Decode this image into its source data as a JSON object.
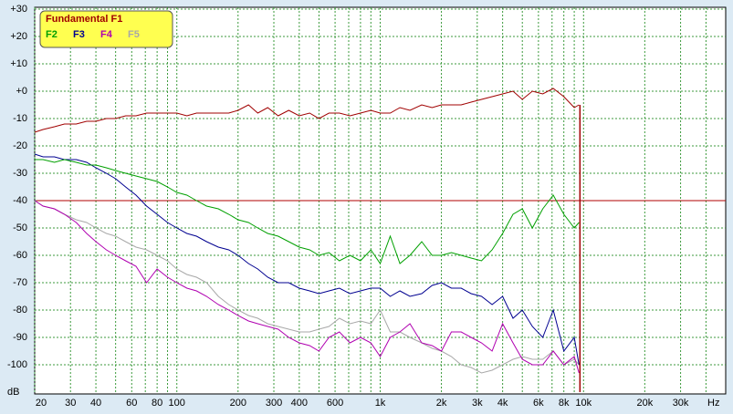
{
  "chart_data": {
    "type": "line",
    "x_unit": "Hz",
    "y_unit": "dB",
    "x": [
      20,
      22,
      25,
      28,
      32,
      36,
      40,
      45,
      50,
      56,
      63,
      71,
      80,
      90,
      100,
      112,
      125,
      140,
      160,
      180,
      200,
      225,
      250,
      280,
      315,
      355,
      400,
      450,
      500,
      560,
      630,
      710,
      800,
      900,
      1000,
      1120,
      1250,
      1400,
      1600,
      1800,
      2000,
      2240,
      2500,
      2800,
      3150,
      3550,
      4000,
      4500,
      5000,
      5600,
      6300,
      7100,
      8000,
      9000,
      9500
    ],
    "series": [
      {
        "name": "Fundamental F1",
        "color": "#a00000",
        "values": [
          -15,
          -14,
          -13,
          -12,
          -12,
          -11,
          -11,
          -10,
          -10,
          -9,
          -9,
          -8,
          -8,
          -8,
          -8,
          -9,
          -8,
          -8,
          -8,
          -8,
          -7,
          -5,
          -8,
          -6,
          -9,
          -7,
          -9,
          -8,
          -10,
          -8,
          -8,
          -9,
          -8,
          -7,
          -8,
          -8,
          -6,
          -7,
          -5,
          -6,
          -5,
          -5,
          -5,
          -4,
          -3,
          -2,
          -1,
          0,
          -3,
          0,
          -1,
          1,
          -2,
          -6,
          -5
        ]
      },
      {
        "name": "F2",
        "color": "#00a000",
        "values": [
          -25,
          -25,
          -26,
          -25,
          -26,
          -27,
          -27,
          -28,
          -29,
          -30,
          -31,
          -32,
          -33,
          -35,
          -37,
          -38,
          -40,
          -42,
          -43,
          -45,
          -47,
          -48,
          -50,
          -52,
          -53,
          -55,
          -57,
          -58,
          -60,
          -59,
          -62,
          -60,
          -62,
          -58,
          -63,
          -53,
          -63,
          -60,
          -55,
          -60,
          -60,
          -59,
          -60,
          -61,
          -62,
          -58,
          -52,
          -45,
          -43,
          -50,
          -43,
          -38,
          -45,
          -50,
          -48
        ]
      },
      {
        "name": "F3",
        "color": "#000090",
        "values": [
          -23,
          -24,
          -24,
          -25,
          -25,
          -26,
          -28,
          -30,
          -32,
          -35,
          -38,
          -42,
          -45,
          -48,
          -50,
          -52,
          -53,
          -55,
          -57,
          -58,
          -60,
          -63,
          -65,
          -68,
          -70,
          -70,
          -72,
          -73,
          -74,
          -73,
          -72,
          -74,
          -73,
          -72,
          -72,
          -75,
          -73,
          -75,
          -74,
          -71,
          -70,
          -72,
          -72,
          -74,
          -75,
          -78,
          -75,
          -83,
          -80,
          -86,
          -90,
          -80,
          -95,
          -90,
          -100
        ]
      },
      {
        "name": "F4",
        "color": "#b000b0",
        "values": [
          -40,
          -42,
          -43,
          -45,
          -48,
          -52,
          -55,
          -58,
          -60,
          -62,
          -64,
          -70,
          -65,
          -68,
          -70,
          -72,
          -73,
          -75,
          -78,
          -80,
          -82,
          -84,
          -85,
          -86,
          -87,
          -90,
          -92,
          -93,
          -95,
          -90,
          -88,
          -92,
          -90,
          -92,
          -97,
          -90,
          -88,
          -85,
          -92,
          -93,
          -95,
          -88,
          -88,
          -90,
          -92,
          -95,
          -85,
          -92,
          -98,
          -100,
          -100,
          -95,
          -100,
          -97,
          -103
        ]
      },
      {
        "name": "F5",
        "color": "#a8a8a8",
        "values": [
          -40,
          -42,
          -43,
          -45,
          -47,
          -48,
          -50,
          -52,
          -53,
          -55,
          -57,
          -58,
          -60,
          -62,
          -65,
          -67,
          -68,
          -70,
          -75,
          -78,
          -80,
          -82,
          -83,
          -85,
          -86,
          -87,
          -88,
          -88,
          -87,
          -86,
          -83,
          -85,
          -84,
          -85,
          -80,
          -88,
          -88,
          -90,
          -92,
          -94,
          -95,
          -97,
          -100,
          -101,
          -103,
          -102,
          -100,
          -98,
          -97,
          -98,
          -98,
          -95,
          -100,
          -98,
          -100
        ]
      }
    ],
    "reference_line": -40,
    "reference_color": "#b00000",
    "cutoff_x": 9600,
    "xlim": [
      20,
      50000
    ],
    "ylim": [
      -110,
      30
    ],
    "log_x": true,
    "grid": true,
    "xticks": [
      20,
      30,
      40,
      60,
      80,
      100,
      200,
      300,
      400,
      600,
      {
        "value": 1000,
        "label": "1k"
      },
      {
        "value": 2000,
        "label": "2k"
      },
      {
        "value": 3000,
        "label": "3k"
      },
      {
        "value": 4000,
        "label": "4k"
      },
      {
        "value": 6000,
        "label": "6k"
      },
      {
        "value": 8000,
        "label": "8k"
      },
      {
        "value": 10000,
        "label": "10k"
      },
      {
        "value": 20000,
        "label": "20k"
      },
      {
        "value": 30000,
        "label": "30k"
      }
    ],
    "xminor": [
      50,
      70,
      90,
      500,
      700,
      800,
      900,
      5000,
      7000,
      9000,
      40000
    ],
    "yticks": [
      {
        "value": 30,
        "label": "+30"
      },
      {
        "value": 20,
        "label": "+20"
      },
      {
        "value": 10,
        "label": "+10"
      },
      {
        "value": 0,
        "label": "+0"
      },
      -10,
      -20,
      -30,
      -40,
      -50,
      -60,
      -70,
      -80,
      -90,
      -100
    ]
  }
}
